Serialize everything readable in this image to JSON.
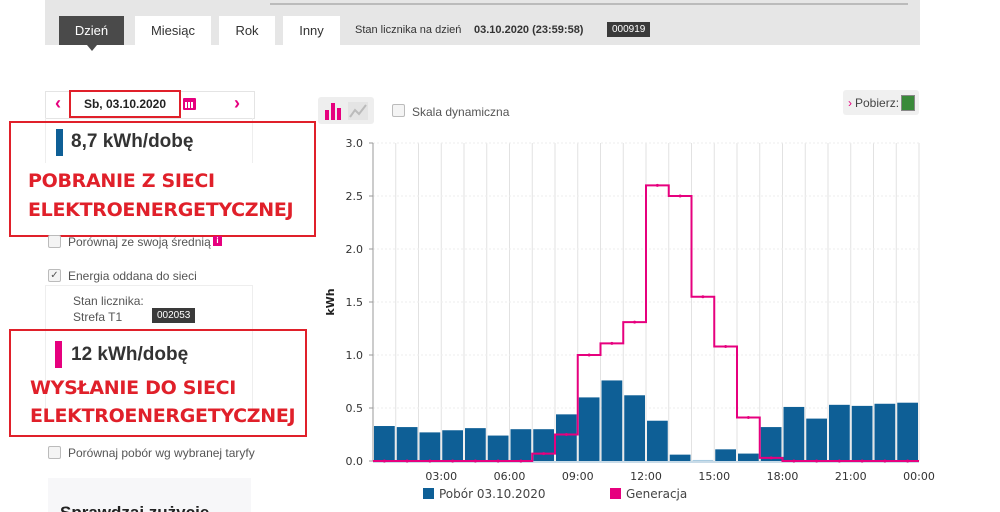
{
  "tabs": [
    {
      "label": "Dzień",
      "active": true
    },
    {
      "label": "Miesiąc"
    },
    {
      "label": "Rok"
    },
    {
      "label": "Inny"
    }
  ],
  "meter_state": {
    "label": "Stan licznika na dzień",
    "datetime": "03.10.2020 (23:59:58)",
    "value": "000919"
  },
  "date_nav": {
    "prev": "‹",
    "date": "Sb, 03.10.2020",
    "next": "›"
  },
  "consumption": {
    "value": "8,7 kWh/dobę",
    "annotation_line1": "POBRANIE Z SIECI",
    "annotation_line2": "ELEKTROENERGETYCZNEJ",
    "color": "#0e5f96"
  },
  "compare_avg": {
    "label": "Porównaj ze swoją średnią",
    "info": "i",
    "checked": false
  },
  "energy_out": {
    "label": "Energia oddana do sieci",
    "checked": true,
    "check": "✓",
    "meter_label": "Stan licznika:",
    "zone": "Strefa T1",
    "zone_value": "002053"
  },
  "generation": {
    "value": "12 kWh/dobę",
    "annotation_line1": "WYSŁANIE DO SIECI",
    "annotation_line2": "ELEKTROENERGETYCZNEJ",
    "color": "#e6007e"
  },
  "compare_tariff": {
    "label": "Porównaj pobór wg wybranej taryfy",
    "checked": false
  },
  "check_usage": {
    "label": "Sprawdzaj zużycie"
  },
  "toolbar": {
    "dynamic_scale": "Skala dynamiczna",
    "download": "Pobierz:",
    "download_arrow": "›"
  },
  "chart_data": {
    "type": "bar",
    "ylabel": "kWh",
    "ylim": [
      0,
      3.0
    ],
    "yticks": [
      "0.0",
      "0.5",
      "1.0",
      "1.5",
      "2.0",
      "2.5",
      "3.0"
    ],
    "xticks": [
      "03:00",
      "06:00",
      "09:00",
      "12:00",
      "15:00",
      "18:00",
      "21:00",
      "00:00"
    ],
    "grid": true,
    "legend_position": "bottom",
    "series": [
      {
        "name": "Pobór 03.10.2020",
        "type": "bar",
        "color": "#0e5f96",
        "values": [
          0.33,
          0.32,
          0.27,
          0.29,
          0.31,
          0.24,
          0.3,
          0.3,
          0.44,
          0.6,
          0.76,
          0.62,
          0.38,
          0.06,
          0.01,
          0.11,
          0.07,
          0.32,
          0.51,
          0.4,
          0.53,
          0.52,
          0.54,
          0.55
        ]
      },
      {
        "name": "Generacja",
        "type": "step-line",
        "color": "#e6007e",
        "values": [
          0,
          0,
          0,
          0,
          0,
          0,
          0,
          0.07,
          0.25,
          1.0,
          1.11,
          1.31,
          2.6,
          2.5,
          1.55,
          1.08,
          0.41,
          0.03,
          0,
          0,
          0,
          0,
          0,
          0
        ]
      }
    ]
  }
}
